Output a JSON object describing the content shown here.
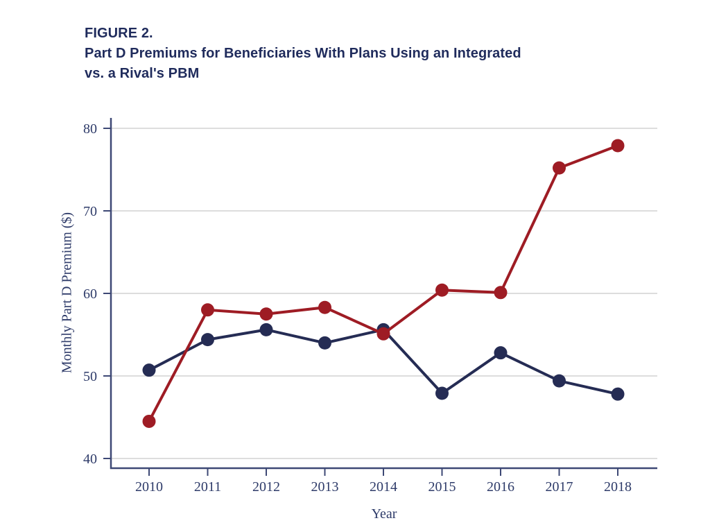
{
  "figure": {
    "label": "FIGURE 2.",
    "title_line1": "Part D Premiums for Beneficiaries With Plans Using an Integrated",
    "title_line2": "vs. a Rival's PBM"
  },
  "chart_data": {
    "type": "line",
    "title": "FIGURE 2. Part D Premiums for Beneficiaries With Plans Using an Integrated vs. a Rival's PBM",
    "xlabel": "Year",
    "ylabel": "Monthly Part D Premium ($)",
    "x": [
      2010,
      2011,
      2012,
      2013,
      2014,
      2015,
      2016,
      2017,
      2018
    ],
    "yticks": [
      40,
      50,
      60,
      70,
      80
    ],
    "ylim": [
      40,
      80
    ],
    "grid": true,
    "legend_position": "none",
    "series": [
      {
        "name": "navy-series",
        "color": "#252c54",
        "values": [
          50.7,
          54.4,
          55.6,
          54.0,
          55.6,
          47.9,
          52.8,
          49.4,
          47.8
        ]
      },
      {
        "name": "red-series",
        "color": "#9e1c24",
        "values": [
          44.5,
          58.0,
          57.5,
          58.3,
          55.1,
          60.4,
          60.1,
          75.2,
          77.9
        ]
      }
    ]
  },
  "style": {
    "axis_color": "#3d4875",
    "grid_color": "#d2d2d2",
    "tick_text_color": "#2e3b69",
    "title_color": "#1f2b5c"
  }
}
